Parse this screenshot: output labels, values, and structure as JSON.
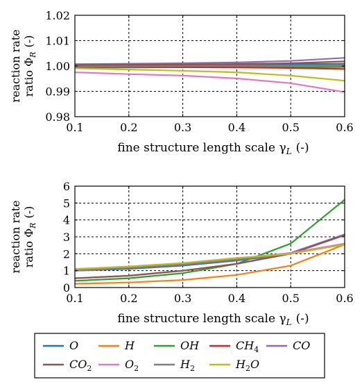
{
  "colors": {
    "O": "#1f77b4",
    "H": "#ff7f0e",
    "OH": "#2ca02c",
    "CH4": "#d62728",
    "CO": "#9467bd",
    "CO2": "#8c564b",
    "O2": "#e377c2",
    "H2": "#7f7f7f",
    "H2O": "#bcbd22"
  },
  "legend": {
    "entries": [
      {
        "key": "O",
        "base": "O",
        "sub": ""
      },
      {
        "key": "H",
        "base": "H",
        "sub": ""
      },
      {
        "key": "OH",
        "base": "OH",
        "sub": ""
      },
      {
        "key": "CH4",
        "base": "CH",
        "sub": "4"
      },
      {
        "key": "CO",
        "base": "CO",
        "sub": ""
      },
      {
        "key": "CO2",
        "base": "CO",
        "sub": "2"
      },
      {
        "key": "O2",
        "base": "O",
        "sub": "2"
      },
      {
        "key": "H2",
        "base": "H",
        "sub": "2"
      },
      {
        "key": "H2O",
        "base": "H",
        "sub": "2",
        "tail": "O"
      }
    ]
  },
  "chart_data": [
    {
      "type": "line",
      "ylabel_line1": "reaction rate",
      "ylabel_line2": "ratio Φ",
      "ylabel_sub": "R",
      "ylabel_unit": "(-)",
      "xlabel": "fine structure length scale γ",
      "xlabel_sub": "L",
      "xlabel_unit": "(-)",
      "xlim": [
        0.1,
        0.6
      ],
      "ylim": [
        0.98,
        1.02
      ],
      "grid": true,
      "x": [
        0.1,
        0.2,
        0.3,
        0.4,
        0.5,
        0.6
      ],
      "x_ticks": [
        "0.1",
        "0.2",
        "0.3",
        "0.4",
        "0.5",
        "0.6"
      ],
      "y_tick_values": [
        0.98,
        0.99,
        1.0,
        1.01,
        1.02
      ],
      "y_ticks": [
        "0.98",
        "0.99",
        "1.00",
        "1.01",
        "1.02"
      ],
      "series": [
        {
          "key": "O",
          "values": [
            1.0002,
            1.0003,
            1.0004,
            1.0005,
            1.0007,
            1.0009
          ]
        },
        {
          "key": "H",
          "values": [
            0.9995,
            0.9996,
            0.9997,
            0.9998,
            0.9999,
            1.0
          ]
        },
        {
          "key": "OH",
          "values": [
            0.9994,
            0.9994,
            0.9995,
            0.9995,
            0.9995,
            0.9996
          ]
        },
        {
          "key": "CH4",
          "values": [
            0.9996,
            0.9996,
            0.9995,
            0.9994,
            0.9992,
            0.9988
          ]
        },
        {
          "key": "CO",
          "values": [
            1.0007,
            1.0009,
            1.0011,
            1.0014,
            1.002,
            1.0032
          ]
        },
        {
          "key": "CO2",
          "values": [
            1.0004,
            1.0005,
            1.0006,
            1.0008,
            1.0011,
            1.0018
          ]
        },
        {
          "key": "O2",
          "values": [
            0.9975,
            0.9968,
            0.9962,
            0.9951,
            0.9932,
            0.9897
          ]
        },
        {
          "key": "H2",
          "values": [
            0.9998,
            0.9999,
            1.0,
            1.0001,
            1.0002,
            1.0004
          ]
        },
        {
          "key": "H2O",
          "values": [
            0.9991,
            0.9986,
            0.9981,
            0.9975,
            0.9962,
            0.9942
          ]
        }
      ]
    },
    {
      "type": "line",
      "ylabel_line1": "reaction rate",
      "ylabel_line2": "ratio Φ",
      "ylabel_sub": "R",
      "ylabel_unit": "(-)",
      "xlabel": "fine structure length scale γ",
      "xlabel_sub": "L",
      "xlabel_unit": "(-)",
      "xlim": [
        0.1,
        0.6
      ],
      "ylim": [
        0,
        6
      ],
      "grid": true,
      "x": [
        0.1,
        0.2,
        0.3,
        0.4,
        0.5,
        0.6
      ],
      "x_ticks": [
        "0.1",
        "0.2",
        "0.3",
        "0.4",
        "0.5",
        "0.6"
      ],
      "y_tick_values": [
        0,
        1,
        2,
        3,
        4,
        5,
        6
      ],
      "y_ticks": [
        "0",
        "1",
        "2",
        "3",
        "4",
        "5",
        "6"
      ],
      "series": [
        {
          "key": "O",
          "values": [
            1.0,
            1.1,
            1.3,
            1.6,
            2.0,
            2.6
          ]
        },
        {
          "key": "H",
          "values": [
            0.22,
            0.3,
            0.45,
            0.75,
            1.3,
            2.55
          ]
        },
        {
          "key": "OH",
          "values": [
            0.4,
            0.55,
            0.85,
            1.4,
            2.6,
            5.2
          ]
        },
        {
          "key": "CH4",
          "values": [
            1.0,
            1.15,
            1.35,
            1.65,
            2.05,
            2.55
          ]
        },
        {
          "key": "CO",
          "values": [
            0.55,
            0.7,
            1.0,
            1.4,
            2.05,
            3.15
          ]
        },
        {
          "key": "CO2",
          "values": [
            0.55,
            0.7,
            1.0,
            1.4,
            2.0,
            3.1
          ]
        },
        {
          "key": "O2",
          "values": [
            1.05,
            1.2,
            1.4,
            1.7,
            2.05,
            2.6
          ]
        },
        {
          "key": "H2",
          "values": [
            1.0,
            1.15,
            1.35,
            1.65,
            2.0,
            2.55
          ]
        },
        {
          "key": "H2O",
          "values": [
            1.1,
            1.25,
            1.45,
            1.75,
            2.0,
            2.55
          ]
        }
      ]
    }
  ]
}
